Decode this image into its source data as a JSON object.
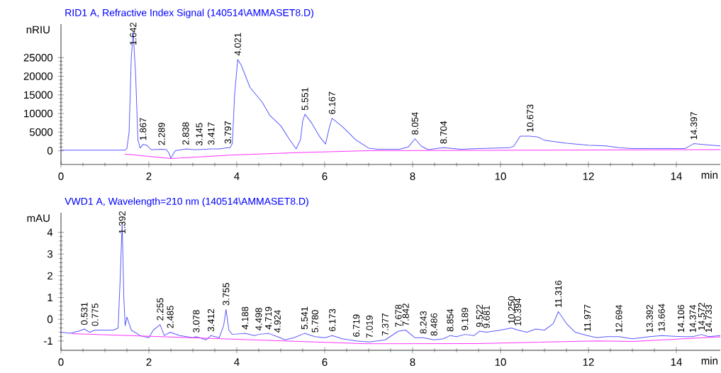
{
  "chart_data": [
    {
      "type": "line",
      "title": "RID1 A, Refractive Index Signal (140514\\AMMASET8.D)",
      "xlabel": "min",
      "ylabel": "nRIU",
      "xlim": [
        0,
        15
      ],
      "ylim": [
        -3700,
        34000
      ],
      "xticks": [
        0,
        2,
        4,
        6,
        8,
        10,
        12,
        14
      ],
      "yticks": [
        0,
        5000,
        10000,
        15000,
        20000,
        25000
      ],
      "series": [
        {
          "color": "#5a5aff",
          "x": [
            0,
            1.45,
            1.5,
            1.55,
            1.6,
            1.642,
            1.7,
            1.75,
            1.8,
            1.867,
            1.95,
            2.05,
            2.1,
            2.289,
            2.4,
            2.45,
            2.5,
            2.55,
            2.6,
            2.7,
            2.838,
            3.0,
            3.145,
            3.3,
            3.417,
            3.6,
            3.797,
            3.85,
            3.9,
            3.95,
            4.021,
            4.1,
            4.3,
            4.58,
            4.75,
            5.0,
            5.2,
            5.35,
            5.45,
            5.5,
            5.551,
            5.7,
            5.9,
            6.02,
            6.1,
            6.167,
            6.4,
            6.7,
            7.0,
            7.2,
            7.7,
            7.9,
            8.054,
            8.2,
            8.35,
            8.704,
            9.1,
            9.5,
            10.2,
            10.3,
            10.45,
            10.673,
            10.85,
            11.0,
            11.5,
            12.0,
            12.4,
            12.7,
            13.0,
            14.2,
            14.397,
            14.6,
            15
          ],
          "values": [
            150,
            150,
            600,
            5000,
            25000,
            32000,
            20000,
            3000,
            700,
            1700,
            1500,
            300,
            300,
            400,
            300,
            -500,
            -2000,
            -1000,
            0,
            200,
            500,
            300,
            300,
            400,
            500,
            500,
            800,
            800,
            2000,
            15000,
            24500,
            23000,
            17000,
            13000,
            9500,
            6700,
            3000,
            500,
            3000,
            8000,
            9800,
            7500,
            3500,
            1800,
            6000,
            8700,
            6500,
            3000,
            700,
            400,
            400,
            1000,
            3200,
            1200,
            300,
            800,
            400,
            600,
            800,
            1200,
            3900,
            3900,
            3700,
            2800,
            2000,
            1500,
            1300,
            800,
            600,
            600,
            1900,
            1700,
            1300
          ]
        },
        {
          "color": "#ff33ff",
          "x": [
            1.45,
            2.5,
            3.85,
            5.35,
            7.0,
            15
          ],
          "values": [
            -900,
            -2100,
            -1200,
            -500,
            0,
            300
          ]
        }
      ],
      "annotations": [
        {
          "text": "1.642",
          "x": 1.642,
          "y": 32000
        },
        {
          "text": "1.867",
          "x": 1.867,
          "y": 1700
        },
        {
          "text": "2.289",
          "x": 2.289,
          "y": 400
        },
        {
          "text": "2.838",
          "x": 2.838,
          "y": 500
        },
        {
          "text": "3.145",
          "x": 3.145,
          "y": 300
        },
        {
          "text": "3.417",
          "x": 3.417,
          "y": 500
        },
        {
          "text": "3.797",
          "x": 3.797,
          "y": 800
        },
        {
          "text": "4.021",
          "x": 4.021,
          "y": 24500
        },
        {
          "text": "5.551",
          "x": 5.551,
          "y": 9800
        },
        {
          "text": "6.167",
          "x": 6.167,
          "y": 8700
        },
        {
          "text": "8.054",
          "x": 8.054,
          "y": 3200
        },
        {
          "text": "8.704",
          "x": 8.704,
          "y": 800
        },
        {
          "text": "10.673",
          "x": 10.673,
          "y": 3900
        },
        {
          "text": "14.397",
          "x": 14.397,
          "y": 1900
        }
      ]
    },
    {
      "type": "line",
      "title": "VWD1 A, Wavelength=210 nm (140514\\AMMASET8.D)",
      "xlabel": "min",
      "ylabel": "mAU",
      "xlim": [
        0,
        15
      ],
      "ylim": [
        -1.43,
        4.9
      ],
      "xticks": [
        0,
        2,
        4,
        6,
        8,
        10,
        12,
        14
      ],
      "yticks": [
        -1,
        0,
        1,
        2,
        3,
        4
      ],
      "series": [
        {
          "color": "#5a5aff",
          "x": [
            0,
            0.2,
            0.4,
            0.531,
            0.65,
            0.775,
            1.0,
            1.2,
            1.3,
            1.35,
            1.392,
            1.43,
            1.46,
            1.5,
            1.6,
            1.8,
            2.0,
            2.1,
            2.255,
            2.35,
            2.485,
            2.7,
            3.0,
            3.078,
            3.3,
            3.412,
            3.6,
            3.7,
            3.755,
            3.82,
            3.9,
            4.188,
            4.4,
            4.498,
            4.719,
            4.924,
            5.1,
            5.3,
            5.541,
            5.78,
            6.0,
            6.173,
            6.4,
            6.719,
            7.019,
            7.377,
            7.678,
            7.842,
            8.05,
            8.243,
            8.486,
            8.7,
            8.854,
            9.0,
            9.189,
            9.4,
            9.522,
            9.681,
            10.0,
            10.25,
            10.394,
            10.6,
            10.8,
            11.0,
            11.2,
            11.316,
            11.5,
            11.7,
            11.977,
            12.2,
            12.4,
            12.694,
            13.0,
            13.2,
            13.392,
            13.664,
            14.106,
            14.374,
            14.572,
            14.733,
            15
          ],
          "values": [
            -0.6,
            -0.65,
            -0.55,
            -0.45,
            -0.6,
            -0.5,
            -0.5,
            -0.5,
            -0.4,
            2,
            4.45,
            1,
            -0.3,
            0.1,
            -0.5,
            -0.75,
            -0.85,
            -0.5,
            -0.25,
            -0.75,
            -0.6,
            -0.75,
            -0.85,
            -0.8,
            -0.95,
            -0.75,
            -0.85,
            -0.3,
            0.45,
            -0.5,
            -0.7,
            -0.65,
            -0.75,
            -0.7,
            -0.65,
            -0.8,
            -0.95,
            -0.85,
            -0.65,
            -0.8,
            -0.85,
            -0.75,
            -0.9,
            -1.0,
            -1.05,
            -0.95,
            -0.55,
            -0.5,
            -0.85,
            -0.85,
            -0.95,
            -0.9,
            -0.75,
            -0.8,
            -0.7,
            -0.75,
            -0.55,
            -0.6,
            -0.5,
            -0.4,
            -0.5,
            -0.6,
            -0.45,
            -0.5,
            -0.2,
            0.35,
            -0.2,
            -0.6,
            -0.75,
            -0.85,
            -0.8,
            -0.8,
            -0.9,
            -0.85,
            -0.8,
            -0.75,
            -0.8,
            -0.8,
            -0.7,
            -0.8,
            -0.75
          ]
        },
        {
          "color": "#ff33ff",
          "x": [
            0.25,
            7.0,
            9.5,
            12.2,
            13.0,
            15
          ],
          "values": [
            -0.66,
            -1.13,
            -1.12,
            -1.0,
            -1.02,
            -0.81
          ]
        }
      ],
      "annotations": [
        {
          "text": "0.531",
          "x": 0.531,
          "y": -0.45
        },
        {
          "text": "0.775",
          "x": 0.775,
          "y": -0.5
        },
        {
          "text": "1.392",
          "x": 1.392,
          "y": 4.45
        },
        {
          "text": "2.255",
          "x": 2.255,
          "y": -0.25
        },
        {
          "text": "2.485",
          "x": 2.485,
          "y": -0.6
        },
        {
          "text": "3.078",
          "x": 3.078,
          "y": -0.8
        },
        {
          "text": "3.412",
          "x": 3.412,
          "y": -0.75
        },
        {
          "text": "3.755",
          "x": 3.755,
          "y": 0.45
        },
        {
          "text": "4.188",
          "x": 4.188,
          "y": -0.65
        },
        {
          "text": "4.498",
          "x": 4.498,
          "y": -0.7
        },
        {
          "text": "4.719",
          "x": 4.719,
          "y": -0.65
        },
        {
          "text": "4.924",
          "x": 4.924,
          "y": -0.8
        },
        {
          "text": "5.541",
          "x": 5.541,
          "y": -0.65
        },
        {
          "text": "5.780",
          "x": 5.78,
          "y": -0.8
        },
        {
          "text": "6.173",
          "x": 6.173,
          "y": -0.75
        },
        {
          "text": "6.719",
          "x": 6.719,
          "y": -1.0
        },
        {
          "text": "7.019",
          "x": 7.019,
          "y": -1.05
        },
        {
          "text": "7.377",
          "x": 7.377,
          "y": -0.95
        },
        {
          "text": "7.678",
          "x": 7.678,
          "y": -0.55
        },
        {
          "text": "7.842",
          "x": 7.842,
          "y": -0.5
        },
        {
          "text": "8.243",
          "x": 8.243,
          "y": -0.85
        },
        {
          "text": "8.486",
          "x": 8.486,
          "y": -0.95
        },
        {
          "text": "8.854",
          "x": 8.854,
          "y": -0.75
        },
        {
          "text": "9.189",
          "x": 9.189,
          "y": -0.7
        },
        {
          "text": "9.522",
          "x": 9.522,
          "y": -0.55
        },
        {
          "text": "9.681",
          "x": 9.681,
          "y": -0.6
        },
        {
          "text": "10.250",
          "x": 10.25,
          "y": -0.4
        },
        {
          "text": "10.394",
          "x": 10.394,
          "y": -0.5
        },
        {
          "text": "11.316",
          "x": 11.316,
          "y": 0.35
        },
        {
          "text": "11.977",
          "x": 11.977,
          "y": -0.75
        },
        {
          "text": "12.694",
          "x": 12.694,
          "y": -0.8
        },
        {
          "text": "13.392",
          "x": 13.392,
          "y": -0.8
        },
        {
          "text": "13.664",
          "x": 13.664,
          "y": -0.75
        },
        {
          "text": "14.106",
          "x": 14.106,
          "y": -0.8
        },
        {
          "text": "14.374",
          "x": 14.374,
          "y": -0.8
        },
        {
          "text": "14.572",
          "x": 14.572,
          "y": -0.7
        },
        {
          "text": "14.733",
          "x": 14.733,
          "y": -0.8
        }
      ]
    }
  ]
}
